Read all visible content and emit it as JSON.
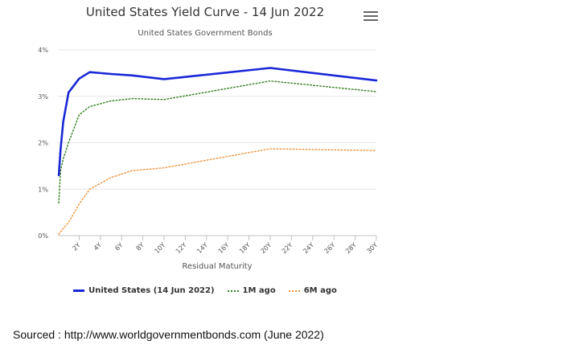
{
  "chart": {
    "title": "United States Yield Curve - 14 Jun 2022",
    "subtitle": "United States Government Bonds",
    "menu_icon": "hamburger-menu-icon"
  },
  "legend": {
    "items": [
      {
        "label": "United States (14 Jun 2022)",
        "color": "#1a27d6",
        "style": "solid"
      },
      {
        "label": "1M ago",
        "color": "#2e7d1a",
        "style": "dotted"
      },
      {
        "label": "6M ago",
        "color": "#f0913a",
        "style": "dotted"
      }
    ]
  },
  "source": "Sourced : http://www.worldgovernmentbonds.com (June 2022)",
  "chart_data": {
    "type": "line",
    "xlabel": "Residual Maturity",
    "ylabel": "",
    "xlim": [
      0,
      30
    ],
    "ylim": [
      0,
      4
    ],
    "x_ticks": [
      "2Y",
      "4Y",
      "6Y",
      "8Y",
      "10Y",
      "12Y",
      "14Y",
      "16Y",
      "18Y",
      "20Y",
      "22Y",
      "24Y",
      "26Y",
      "28Y",
      "30Y"
    ],
    "y_ticks": [
      "0%",
      "1%",
      "2%",
      "3%",
      "4%"
    ],
    "grid": true,
    "legend_position": "bottom",
    "series": [
      {
        "name": "United States (14 Jun 2022)",
        "color": "#1a27d6",
        "x": [
          0.083,
          0.25,
          0.5,
          1,
          2,
          3,
          5,
          7,
          10,
          20,
          30
        ],
        "y": [
          1.3,
          1.85,
          2.45,
          3.08,
          3.38,
          3.52,
          3.48,
          3.45,
          3.37,
          3.61,
          3.34
        ]
      },
      {
        "name": "1M ago",
        "color": "#2e7d1a",
        "x": [
          0.083,
          0.25,
          0.5,
          1,
          2,
          3,
          5,
          7,
          10,
          20,
          30
        ],
        "y": [
          0.7,
          1.4,
          1.65,
          2.0,
          2.6,
          2.78,
          2.9,
          2.95,
          2.93,
          3.33,
          3.1
        ]
      },
      {
        "name": "6M ago",
        "color": "#f0913a",
        "x": [
          0.083,
          0.25,
          0.5,
          1,
          2,
          3,
          5,
          7,
          10,
          20,
          30
        ],
        "y": [
          0.03,
          0.08,
          0.15,
          0.28,
          0.68,
          1.0,
          1.25,
          1.4,
          1.46,
          1.87,
          1.83
        ]
      }
    ]
  }
}
